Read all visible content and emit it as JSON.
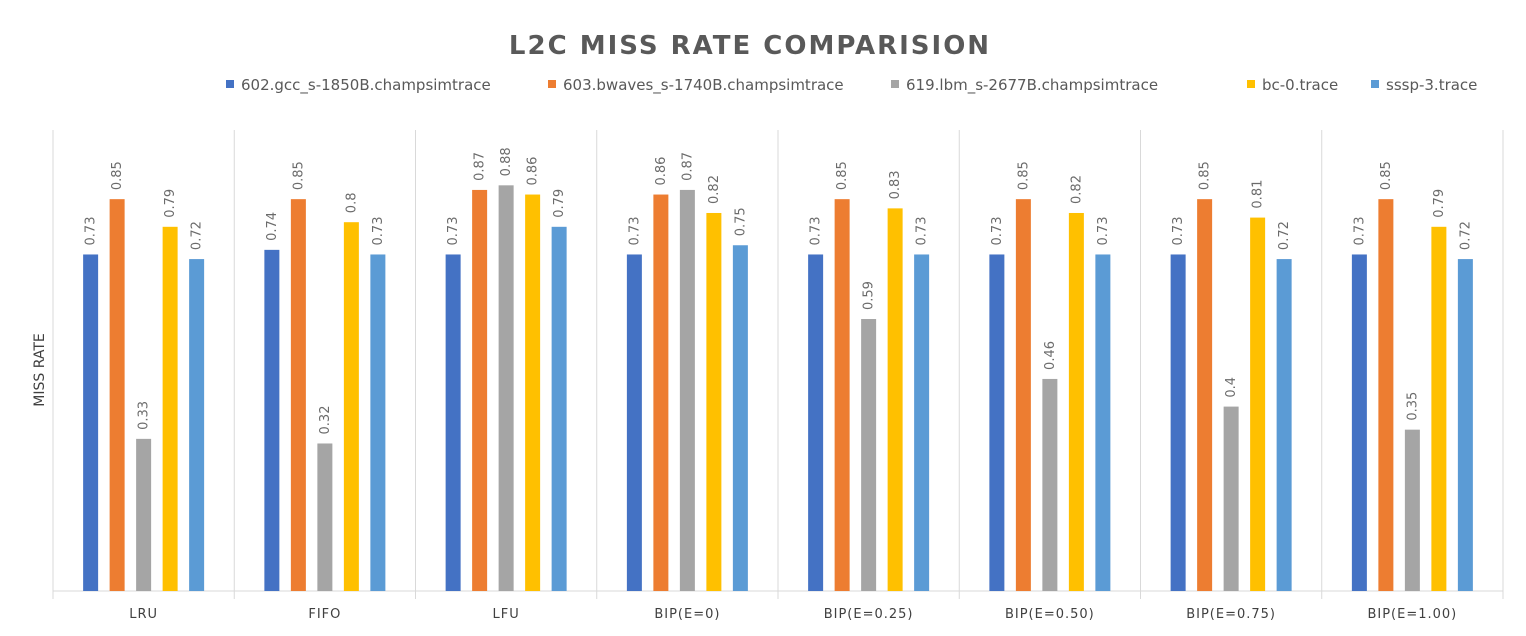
{
  "chart_data": {
    "type": "bar",
    "title": "L2C MISS RATE COMPARISION",
    "xlabel": "",
    "ylabel": "MISS RATE",
    "ylim": [
      0,
      1.0
    ],
    "grid": false,
    "legend_position": "top",
    "categories": [
      "LRU",
      "FIFO",
      "LFU",
      "BIP(E=0)",
      "BIP(E=0.25)",
      "BIP(E=0.50)",
      "BIP(E=0.75)",
      "BIP(E=1.00)"
    ],
    "series": [
      {
        "name": "602.gcc_s-1850B.champsimtrace",
        "color": "#4472C4",
        "values": [
          0.73,
          0.74,
          0.73,
          0.73,
          0.73,
          0.73,
          0.73,
          0.73
        ]
      },
      {
        "name": "603.bwaves_s-1740B.champsimtrace",
        "color": "#ED7D31",
        "values": [
          0.85,
          0.85,
          0.87,
          0.86,
          0.85,
          0.85,
          0.85,
          0.85
        ]
      },
      {
        "name": "619.lbm_s-2677B.champsimtrace",
        "color": "#A5A5A5",
        "values": [
          0.33,
          0.32,
          0.88,
          0.87,
          0.59,
          0.46,
          0.4,
          0.35
        ]
      },
      {
        "name": "bc-0.trace",
        "color": "#FFC000",
        "values": [
          0.79,
          0.8,
          0.86,
          0.82,
          0.83,
          0.82,
          0.81,
          0.79
        ]
      },
      {
        "name": "sssp-3.trace",
        "color": "#5B9BD5",
        "values": [
          0.72,
          0.73,
          0.79,
          0.75,
          0.73,
          0.73,
          0.72,
          0.72
        ]
      }
    ]
  }
}
